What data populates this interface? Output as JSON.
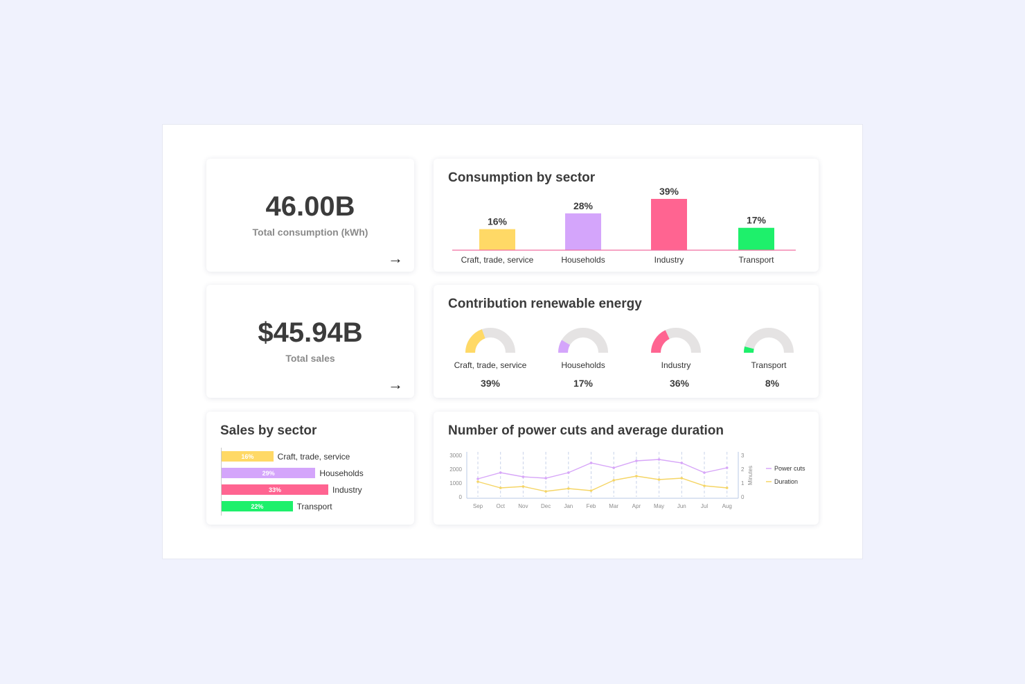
{
  "kpis": {
    "consumption": {
      "value": "46.00B",
      "label": "Total consumption (kWh)",
      "arrow": "→"
    },
    "sales": {
      "value": "$45.94B",
      "label": "Total sales",
      "arrow": "→"
    }
  },
  "colors": {
    "craft": "#ffd966",
    "households": "#d4a5fb",
    "industry": "#ff6491",
    "transport": "#1ef06b",
    "gauge_track": "#e5e3e3",
    "baseline": "#f06ea0",
    "power_cuts_line": "#d7a6f8",
    "duration_line": "#f5d565",
    "axis": "#b9c8e6"
  },
  "consumption_chart": {
    "title": "Consumption by sector",
    "chart_data": {
      "type": "bar",
      "categories": [
        "Craft, trade, service",
        "Households",
        "Industry",
        "Transport"
      ],
      "values": [
        16,
        28,
        39,
        17
      ],
      "value_labels": [
        "16%",
        "28%",
        "39%",
        "17%"
      ],
      "units": "%"
    }
  },
  "renewable": {
    "title": "Contribution renewable energy",
    "chart_data": {
      "type": "gauge",
      "categories": [
        "Craft, trade, service",
        "Households",
        "Industry",
        "Transport"
      ],
      "values": [
        39,
        17,
        36,
        8
      ],
      "value_labels": [
        "39%",
        "17%",
        "36%",
        "8%"
      ]
    }
  },
  "sales_chart": {
    "title": "Sales by sector",
    "chart_data": {
      "type": "bar",
      "orientation": "horizontal",
      "categories": [
        "Craft, trade, service",
        "Households",
        "Industry",
        "Transport"
      ],
      "values": [
        16,
        29,
        33,
        22
      ],
      "value_labels": [
        "16%",
        "29%",
        "33%",
        "22%"
      ]
    }
  },
  "power_cuts": {
    "title": "Number of power cuts and average duration",
    "chart_data": {
      "type": "line",
      "x": [
        "Sep",
        "Oct",
        "Nov",
        "Dec",
        "Jan",
        "Feb",
        "Mar",
        "Apr",
        "May",
        "Jun",
        "Jul",
        "Aug"
      ],
      "series": [
        {
          "name": "Power cuts",
          "axis": "left",
          "values": [
            1300,
            1750,
            1450,
            1350,
            1750,
            2450,
            2100,
            2600,
            2700,
            2450,
            1750,
            2100
          ]
        },
        {
          "name": "Duration",
          "axis": "right",
          "values": [
            1.1,
            0.65,
            0.75,
            0.4,
            0.6,
            0.45,
            1.2,
            1.5,
            1.25,
            1.35,
            0.8,
            0.65
          ]
        }
      ],
      "y_left": {
        "ticks": [
          "0",
          "1000",
          "2000",
          "3000"
        ],
        "ylim": [
          0,
          3000
        ]
      },
      "y_right": {
        "label": "Minutes",
        "ticks": [
          "0",
          "1",
          "2",
          "3"
        ],
        "ylim": [
          0,
          3
        ]
      },
      "grid": "vertical dashed",
      "legend_position": "right"
    }
  }
}
